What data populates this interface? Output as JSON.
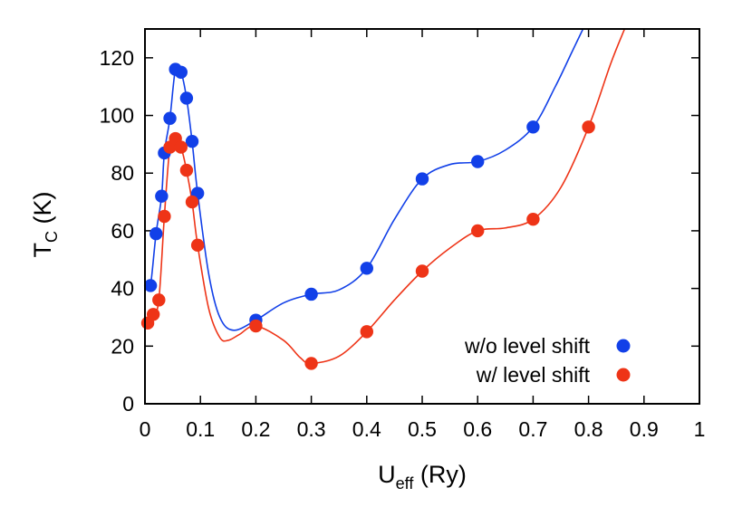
{
  "chart_data": {
    "type": "scatter",
    "title": "",
    "xlabel": {
      "main": "U",
      "sub": "eff",
      "unit": " (Ry)"
    },
    "ylabel": {
      "main": "T",
      "sub": "C",
      "unit": " (K)"
    },
    "xlim": [
      0,
      1
    ],
    "ylim": [
      0,
      130
    ],
    "x_ticks": [
      0,
      0.1,
      0.2,
      0.3,
      0.4,
      0.5,
      0.6,
      0.7,
      0.8,
      0.9,
      1
    ],
    "x_tick_labels": [
      "0",
      "0.1",
      "0.2",
      "0.3",
      "0.4",
      "0.5",
      "0.6",
      "0.7",
      "0.8",
      "0.9",
      "1"
    ],
    "y_ticks": [
      0,
      20,
      40,
      60,
      80,
      100,
      120
    ],
    "y_tick_labels": [
      "0",
      "20",
      "40",
      "60",
      "80",
      "100",
      "120"
    ],
    "grid": false,
    "legend_position": "bottom-right",
    "series": [
      {
        "name": "w/o level shift",
        "color": "#1240e8",
        "points": [
          [
            0.01,
            41
          ],
          [
            0.02,
            59
          ],
          [
            0.03,
            72
          ],
          [
            0.035,
            87
          ],
          [
            0.045,
            99
          ],
          [
            0.055,
            116
          ],
          [
            0.065,
            115
          ],
          [
            0.075,
            106
          ],
          [
            0.085,
            91
          ],
          [
            0.095,
            73
          ],
          [
            0.2,
            29
          ],
          [
            0.3,
            38
          ],
          [
            0.4,
            47
          ],
          [
            0.5,
            78
          ],
          [
            0.6,
            84
          ],
          [
            0.7,
            96
          ]
        ],
        "curve": [
          [
            0.003,
            40
          ],
          [
            0.01,
            41
          ],
          [
            0.02,
            59
          ],
          [
            0.03,
            72
          ],
          [
            0.035,
            87
          ],
          [
            0.045,
            99
          ],
          [
            0.055,
            116
          ],
          [
            0.065,
            115
          ],
          [
            0.075,
            106
          ],
          [
            0.085,
            91
          ],
          [
            0.095,
            73
          ],
          [
            0.115,
            45
          ],
          [
            0.135,
            30
          ],
          [
            0.16,
            25.5
          ],
          [
            0.2,
            29
          ],
          [
            0.25,
            35
          ],
          [
            0.3,
            38
          ],
          [
            0.35,
            39.5
          ],
          [
            0.4,
            47
          ],
          [
            0.45,
            64
          ],
          [
            0.5,
            78
          ],
          [
            0.55,
            83
          ],
          [
            0.6,
            84
          ],
          [
            0.65,
            88
          ],
          [
            0.7,
            96
          ],
          [
            0.74,
            110
          ],
          [
            0.77,
            122
          ],
          [
            0.79,
            130
          ]
        ]
      },
      {
        "name": "w/ level shift",
        "color": "#ee3417",
        "points": [
          [
            0.005,
            28
          ],
          [
            0.015,
            31
          ],
          [
            0.025,
            36
          ],
          [
            0.035,
            65
          ],
          [
            0.045,
            89
          ],
          [
            0.055,
            92
          ],
          [
            0.065,
            89
          ],
          [
            0.075,
            81
          ],
          [
            0.085,
            70
          ],
          [
            0.095,
            55
          ],
          [
            0.2,
            27
          ],
          [
            0.3,
            14
          ],
          [
            0.4,
            25
          ],
          [
            0.5,
            46
          ],
          [
            0.6,
            60
          ],
          [
            0.7,
            64
          ],
          [
            0.8,
            96
          ]
        ],
        "curve": [
          [
            0.003,
            27
          ],
          [
            0.005,
            28
          ],
          [
            0.015,
            31
          ],
          [
            0.025,
            36
          ],
          [
            0.035,
            65
          ],
          [
            0.045,
            89
          ],
          [
            0.055,
            92
          ],
          [
            0.065,
            89
          ],
          [
            0.075,
            81
          ],
          [
            0.085,
            70
          ],
          [
            0.095,
            55
          ],
          [
            0.115,
            33
          ],
          [
            0.135,
            23
          ],
          [
            0.15,
            22
          ],
          [
            0.17,
            24
          ],
          [
            0.2,
            27
          ],
          [
            0.25,
            22
          ],
          [
            0.28,
            16
          ],
          [
            0.3,
            14
          ],
          [
            0.35,
            16.5
          ],
          [
            0.4,
            25
          ],
          [
            0.45,
            36
          ],
          [
            0.5,
            46
          ],
          [
            0.55,
            54
          ],
          [
            0.6,
            60
          ],
          [
            0.65,
            61
          ],
          [
            0.7,
            64
          ],
          [
            0.75,
            75
          ],
          [
            0.8,
            96
          ],
          [
            0.84,
            118
          ],
          [
            0.865,
            130
          ]
        ]
      }
    ]
  }
}
